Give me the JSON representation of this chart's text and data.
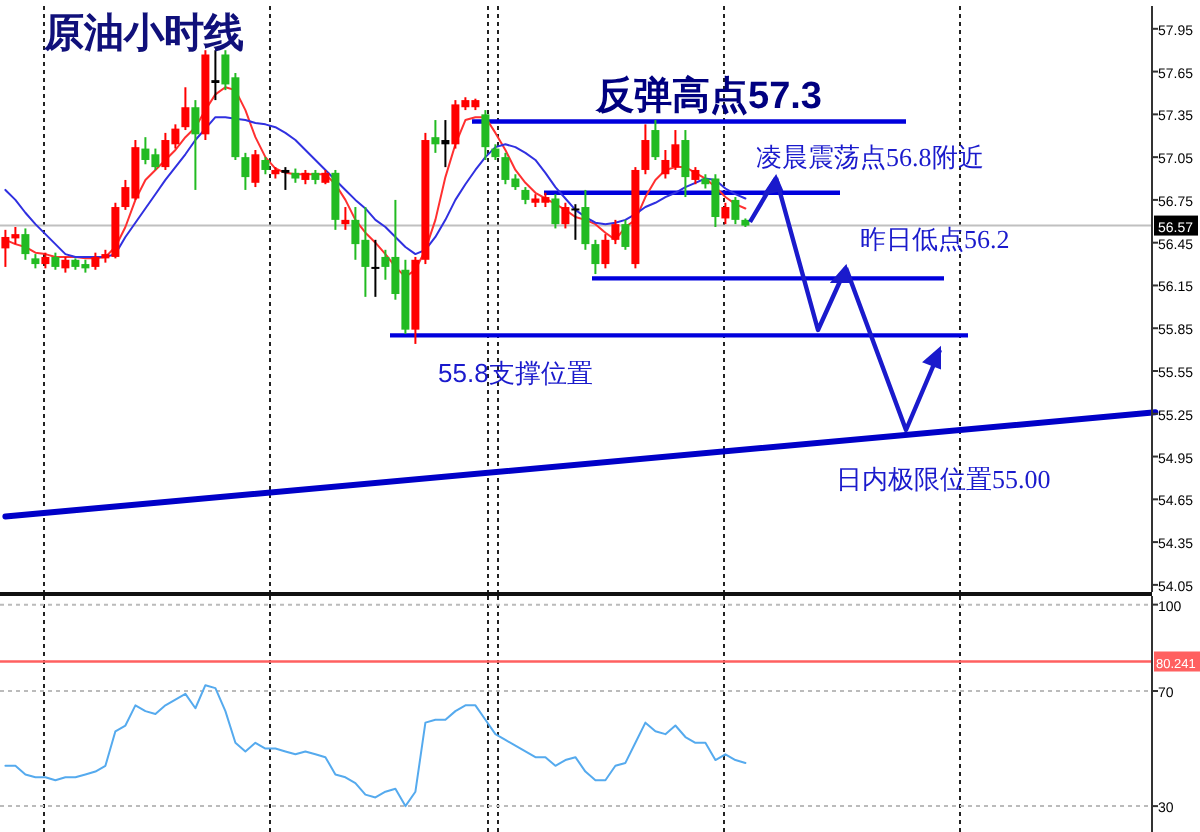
{
  "chart_data": [
    {
      "type": "candlestick",
      "title": "原油小时线",
      "categories": [
        null,
        null,
        null,
        null,
        null,
        null,
        null,
        null,
        null,
        null,
        null,
        null,
        null,
        null,
        null,
        null,
        null,
        null,
        null,
        null,
        null,
        null,
        null,
        null,
        null,
        null,
        null,
        null,
        null,
        null,
        null,
        null,
        null,
        null,
        null,
        null,
        null,
        null,
        null,
        null,
        null,
        null,
        null,
        null,
        null,
        null,
        null,
        null,
        null,
        null,
        null,
        null,
        null,
        null,
        null,
        null,
        null,
        null,
        null,
        null,
        null,
        null,
        null,
        null,
        null,
        null,
        null,
        null,
        null,
        null,
        null,
        null,
        null,
        null,
        null,
        null,
        null,
        null,
        null,
        null,
        null,
        null,
        null,
        null,
        null,
        null,
        null,
        null,
        null,
        null,
        null,
        null,
        null,
        null,
        null,
        null,
        null,
        null,
        null,
        null,
        null,
        null,
        null,
        null,
        null,
        null,
        null,
        null,
        null,
        null,
        null,
        null,
        null,
        null,
        null,
        null
      ],
      "ohlc": [
        [
          56.41,
          56.54,
          56.28,
          56.49
        ],
        [
          56.48,
          56.56,
          56.44,
          56.51
        ],
        [
          56.51,
          56.55,
          56.33,
          56.37
        ],
        [
          56.34,
          56.37,
          56.27,
          56.3
        ],
        [
          56.3,
          56.38,
          56.27,
          56.35
        ],
        [
          56.35,
          56.38,
          56.26,
          56.28
        ],
        [
          56.27,
          56.35,
          56.24,
          56.33
        ],
        [
          56.33,
          56.34,
          56.26,
          56.28
        ],
        [
          56.3,
          56.33,
          56.24,
          56.27
        ],
        [
          56.28,
          56.38,
          56.26,
          56.35
        ],
        [
          56.34,
          56.4,
          56.31,
          56.37
        ],
        [
          56.35,
          56.73,
          56.34,
          56.7
        ],
        [
          56.7,
          56.89,
          56.68,
          56.84
        ],
        [
          56.76,
          57.17,
          56.75,
          57.12
        ],
        [
          57.11,
          57.19,
          57.0,
          57.03
        ],
        [
          57.07,
          57.11,
          56.96,
          56.98
        ],
        [
          56.98,
          57.22,
          56.96,
          57.17
        ],
        [
          57.14,
          57.28,
          57.11,
          57.25
        ],
        [
          57.26,
          57.54,
          57.24,
          57.4
        ],
        [
          57.4,
          57.45,
          56.82,
          57.21
        ],
        [
          57.21,
          57.8,
          57.17,
          57.77
        ],
        [
          57.59,
          57.8,
          57.45,
          57.57
        ],
        [
          57.77,
          57.8,
          57.52,
          57.56
        ],
        [
          57.61,
          57.64,
          57.03,
          57.05
        ],
        [
          57.05,
          57.08,
          56.82,
          56.91
        ],
        [
          56.87,
          57.1,
          56.84,
          57.07
        ],
        [
          57.03,
          57.05,
          56.93,
          56.96
        ],
        [
          56.93,
          56.98,
          56.9,
          56.96
        ],
        [
          56.96,
          56.98,
          56.82,
          56.94
        ],
        [
          56.94,
          56.97,
          56.87,
          56.9
        ],
        [
          56.89,
          56.96,
          56.86,
          56.94
        ],
        [
          56.94,
          56.96,
          56.86,
          56.89
        ],
        [
          56.87,
          56.96,
          56.86,
          56.94
        ],
        [
          56.94,
          56.96,
          56.54,
          56.61
        ],
        [
          56.58,
          56.7,
          56.54,
          56.61
        ],
        [
          56.61,
          56.7,
          56.33,
          56.44
        ],
        [
          56.47,
          56.7,
          56.07,
          56.28
        ],
        [
          56.28,
          56.47,
          56.07,
          56.27
        ],
        [
          56.35,
          56.4,
          56.19,
          56.28
        ],
        [
          56.35,
          56.75,
          56.05,
          56.09
        ],
        [
          56.26,
          56.33,
          55.81,
          55.84
        ],
        [
          55.84,
          56.35,
          55.74,
          56.33
        ],
        [
          56.33,
          57.22,
          56.3,
          57.17
        ],
        [
          57.19,
          57.31,
          57.08,
          57.14
        ],
        [
          57.17,
          57.31,
          56.98,
          57.14
        ],
        [
          57.14,
          57.45,
          57.11,
          57.42
        ],
        [
          57.4,
          57.47,
          57.38,
          57.45
        ],
        [
          57.4,
          57.46,
          57.38,
          57.45
        ],
        [
          57.35,
          57.38,
          57.03,
          57.12
        ],
        [
          57.11,
          57.14,
          57.03,
          57.05
        ],
        [
          57.05,
          57.08,
          56.86,
          56.89
        ],
        [
          56.9,
          56.93,
          56.82,
          56.84
        ],
        [
          56.82,
          56.84,
          56.72,
          56.75
        ],
        [
          56.73,
          56.79,
          56.7,
          56.76
        ],
        [
          56.73,
          56.8,
          56.7,
          56.77
        ],
        [
          56.76,
          56.79,
          56.55,
          56.58
        ],
        [
          56.58,
          56.73,
          56.55,
          56.7
        ],
        [
          56.69,
          56.72,
          56.47,
          56.68
        ],
        [
          56.7,
          56.82,
          56.4,
          56.44
        ],
        [
          56.44,
          56.47,
          56.23,
          56.3
        ],
        [
          56.3,
          56.51,
          56.27,
          56.47
        ],
        [
          56.47,
          56.61,
          56.44,
          56.58
        ],
        [
          56.58,
          56.61,
          56.4,
          56.42
        ],
        [
          56.3,
          56.98,
          56.27,
          56.96
        ],
        [
          56.96,
          57.28,
          56.93,
          57.17
        ],
        [
          57.24,
          57.31,
          57.03,
          57.05
        ],
        [
          56.93,
          57.1,
          56.9,
          57.03
        ],
        [
          56.98,
          57.24,
          56.96,
          57.14
        ],
        [
          57.17,
          57.24,
          56.77,
          56.91
        ],
        [
          56.89,
          56.98,
          56.86,
          56.96
        ],
        [
          56.9,
          56.93,
          56.83,
          56.86
        ],
        [
          56.9,
          56.93,
          56.56,
          56.63
        ],
        [
          56.62,
          56.73,
          56.58,
          56.7
        ],
        [
          56.75,
          56.77,
          56.58,
          56.61
        ],
        [
          56.61,
          56.62,
          56.56,
          56.57
        ],
        null,
        null,
        null,
        null,
        null,
        null,
        null,
        null,
        null,
        null,
        null,
        null,
        null,
        null,
        null,
        null,
        null,
        null,
        null,
        null,
        null,
        null,
        null,
        null,
        null,
        null,
        null,
        null,
        null,
        null,
        null,
        null,
        null,
        null,
        null,
        null,
        null,
        null,
        null,
        null,
        null
      ],
      "colors": [
        "#ff0000",
        "#ff0000",
        "#22bb22",
        "#22bb22",
        "#ff0000",
        "#22bb22",
        "#ff0000",
        "#22bb22",
        "#22bb22",
        "#ff0000",
        "#ff0000",
        "#ff0000",
        "#ff0000",
        "#ff0000",
        "#22bb22",
        "#22bb22",
        "#ff0000",
        "#ff0000",
        "#ff0000",
        "#22bb22",
        "#ff0000",
        "#000000",
        "#22bb22",
        "#22bb22",
        "#22bb22",
        "#ff0000",
        "#22bb22",
        "#ff0000",
        "#000000",
        "#22bb22",
        "#ff0000",
        "#22bb22",
        "#ff0000",
        "#22bb22",
        "#ff0000",
        "#22bb22",
        "#22bb22",
        "#000000",
        "#22bb22",
        "#22bb22",
        "#22bb22",
        "#ff0000",
        "#ff0000",
        "#22bb22",
        "#000000",
        "#ff0000",
        "#ff0000",
        "#ff0000",
        "#22bb22",
        "#22bb22",
        "#22bb22",
        "#22bb22",
        "#22bb22",
        "#ff0000",
        "#ff0000",
        "#22bb22",
        "#ff0000",
        "#000000",
        "#22bb22",
        "#22bb22",
        "#ff0000",
        "#ff0000",
        "#22bb22",
        "#ff0000",
        "#ff0000",
        "#22bb22",
        "#ff0000",
        "#ff0000",
        "#22bb22",
        "#ff0000",
        "#22bb22",
        "#22bb22",
        "#ff0000",
        "#22bb22",
        "#22bb22",
        null,
        null,
        null,
        null,
        null,
        null,
        null,
        null,
        null,
        null,
        null,
        null,
        null,
        null,
        null,
        null,
        null,
        null,
        null,
        null,
        null,
        null,
        null,
        null,
        null,
        null,
        null,
        null,
        null,
        null,
        null,
        null,
        null,
        null,
        null,
        null,
        null,
        null,
        null,
        null,
        null
      ],
      "series": [
        {
          "type": "line",
          "color": "#ff3030",
          "values": [
            56.47,
            56.44,
            56.42,
            56.38,
            56.37,
            56.35,
            56.35,
            56.35,
            56.34,
            56.34,
            56.35,
            56.42,
            56.56,
            56.75,
            56.89,
            56.96,
            57.03,
            57.1,
            57.19,
            57.26,
            57.38,
            57.49,
            57.54,
            57.52,
            57.38,
            57.19,
            57.05,
            56.97,
            56.94,
            56.93,
            56.93,
            56.93,
            56.93,
            56.86,
            56.75,
            56.61,
            56.52,
            56.45,
            56.37,
            56.28,
            56.21,
            56.26,
            56.4,
            56.61,
            56.91,
            57.14,
            57.31,
            57.33,
            57.33,
            57.22,
            57.1,
            56.96,
            56.87,
            56.8,
            56.76,
            56.72,
            56.68,
            56.63,
            56.61,
            56.58,
            56.52,
            56.47,
            56.56,
            56.61,
            56.77,
            56.89,
            56.96,
            56.98,
            56.98,
            56.94,
            56.9,
            56.84,
            56.77,
            56.72,
            56.69,
            null,
            null,
            null,
            null,
            null,
            null,
            null,
            null,
            null,
            null,
            null,
            null,
            null,
            null,
            null,
            null,
            null,
            null,
            null,
            null,
            null,
            null,
            null,
            null,
            null,
            null,
            null,
            null,
            null,
            null,
            null,
            null,
            null,
            null,
            null,
            null,
            null,
            null,
            null,
            null,
            null
          ]
        },
        {
          "type": "line",
          "color": "#3030e0",
          "values": [
            56.82,
            56.75,
            56.66,
            56.58,
            56.51,
            56.44,
            56.37,
            56.35,
            56.35,
            56.35,
            56.35,
            56.37,
            56.49,
            56.59,
            56.69,
            56.79,
            56.89,
            56.98,
            57.07,
            57.17,
            57.25,
            57.33,
            57.33,
            57.32,
            57.31,
            57.29,
            57.28,
            57.26,
            57.22,
            57.17,
            57.1,
            57.03,
            56.96,
            56.89,
            56.82,
            56.75,
            56.69,
            56.61,
            56.56,
            56.49,
            56.42,
            56.37,
            56.4,
            56.49,
            56.61,
            56.75,
            56.86,
            56.96,
            57.05,
            57.12,
            57.14,
            57.12,
            57.08,
            57.03,
            56.94,
            56.84,
            56.76,
            56.68,
            56.63,
            56.59,
            56.58,
            56.59,
            56.61,
            56.65,
            56.7,
            56.73,
            56.77,
            56.8,
            56.84,
            56.87,
            56.9,
            56.89,
            56.83,
            56.79,
            56.76,
            null,
            null,
            null,
            null,
            null,
            null,
            null,
            null,
            null,
            null,
            null,
            null,
            null,
            null,
            null,
            null,
            null,
            null,
            null,
            null,
            null,
            null,
            null,
            null,
            null,
            null,
            null,
            null,
            null,
            null,
            null,
            null,
            null,
            null,
            null,
            null,
            null,
            null,
            null,
            null,
            null
          ]
        },
        {
          "type": "line",
          "color": "#0000c8",
          "values": [
            54.53,
            null,
            null,
            null,
            null,
            null,
            null,
            null,
            null,
            null,
            null,
            null,
            null,
            null,
            null,
            null,
            null,
            null,
            null,
            null,
            null,
            null,
            null,
            null,
            null,
            null,
            null,
            null,
            null,
            null,
            null,
            null,
            null,
            null,
            null,
            null,
            null,
            null,
            null,
            null,
            null,
            null,
            null,
            null,
            null,
            null,
            null,
            null,
            null,
            null,
            null,
            null,
            null,
            null,
            null,
            null,
            null,
            null,
            null,
            null,
            null,
            null,
            null,
            null,
            null,
            null,
            null,
            null,
            null,
            null,
            null,
            null,
            null,
            null,
            null,
            null,
            null,
            null,
            null,
            null,
            null,
            null,
            null,
            null,
            null,
            null,
            null,
            null,
            null,
            null,
            null,
            null,
            null,
            null,
            null,
            null,
            null,
            null,
            null,
            null,
            null,
            null,
            null,
            null,
            null,
            null,
            null,
            null,
            null,
            null,
            null,
            null,
            null,
            null,
            null,
            55.26
          ]
        }
      ],
      "ylim": [
        54.0,
        58.11
      ],
      "yticks": [
        57.95,
        57.65,
        57.35,
        57.05,
        56.75,
        56.45,
        56.15,
        55.85,
        55.55,
        55.25,
        54.95,
        54.65,
        54.35,
        54.05
      ],
      "ref_lines": [
        {
          "axis": "y",
          "value": 57.3,
          "label": "反弹高点57.3",
          "color": "#0000dd"
        },
        {
          "axis": "y",
          "value": 56.8,
          "label": "凌晨震荡点56.8附近",
          "color": "#0000dd"
        },
        {
          "axis": "y",
          "value": 56.2,
          "label": "昨日低点56.2",
          "color": "#0000dd"
        },
        {
          "axis": "y",
          "value": 55.8,
          "label": "55.8支撑位置",
          "color": "#0000dd"
        },
        {
          "axis": "y",
          "value": 56.57,
          "label": "56.57",
          "color": "#c0c0c0"
        }
      ],
      "annotations": [
        "日内极限位置55.00"
      ]
    },
    {
      "type": "line",
      "categories": [
        null,
        null,
        null,
        null,
        null,
        null,
        null,
        null,
        null,
        null,
        null,
        null,
        null,
        null,
        null,
        null,
        null,
        null,
        null,
        null,
        null,
        null,
        null,
        null,
        null,
        null,
        null,
        null,
        null,
        null,
        null,
        null,
        null,
        null,
        null,
        null,
        null,
        null,
        null,
        null,
        null,
        null,
        null,
        null,
        null,
        null,
        null,
        null,
        null,
        null,
        null,
        null,
        null,
        null,
        null,
        null,
        null,
        null,
        null,
        null,
        null,
        null,
        null,
        null,
        null,
        null,
        null,
        null,
        null,
        null,
        null,
        null,
        null,
        null,
        null,
        null,
        null,
        null,
        null,
        null,
        null,
        null,
        null,
        null,
        null,
        null,
        null,
        null,
        null,
        null,
        null,
        null,
        null,
        null,
        null,
        null,
        null,
        null,
        null,
        null,
        null,
        null,
        null,
        null,
        null,
        null,
        null,
        null,
        null,
        null,
        null,
        null,
        null,
        null,
        null,
        null
      ],
      "series": [
        {
          "color": "#55aaee",
          "values": [
            44,
            44,
            41,
            40,
            40,
            39,
            40,
            40,
            41,
            42,
            44,
            56,
            58,
            65,
            63,
            62,
            65,
            67,
            69,
            64,
            72,
            71,
            63,
            52,
            49,
            52,
            50,
            50,
            49,
            48,
            49,
            48,
            47,
            41,
            40,
            38,
            34,
            33,
            35,
            36,
            30,
            35,
            59,
            60,
            60,
            63,
            65,
            65,
            60,
            55,
            53,
            51,
            49,
            47,
            47,
            44,
            46,
            47,
            42,
            39,
            39,
            44,
            45,
            52,
            59,
            56,
            55,
            58,
            54,
            52,
            52,
            46,
            48,
            46,
            45,
            null,
            null,
            null,
            null,
            null,
            null,
            null,
            null,
            null,
            null,
            null,
            null,
            null,
            null,
            null,
            null,
            null,
            null,
            null,
            null,
            null,
            null,
            null,
            null,
            null,
            null,
            null,
            null,
            null,
            null,
            null,
            null,
            null,
            null,
            null,
            null,
            null,
            null,
            null,
            null,
            null
          ]
        }
      ],
      "ylim": [
        21,
        103
      ],
      "yticks": [
        30,
        70,
        100
      ],
      "grid": "y",
      "ref_lines": [
        {
          "axis": "y",
          "value": 80.241,
          "label": "80.241",
          "color": "#ff6060"
        }
      ]
    }
  ]
}
